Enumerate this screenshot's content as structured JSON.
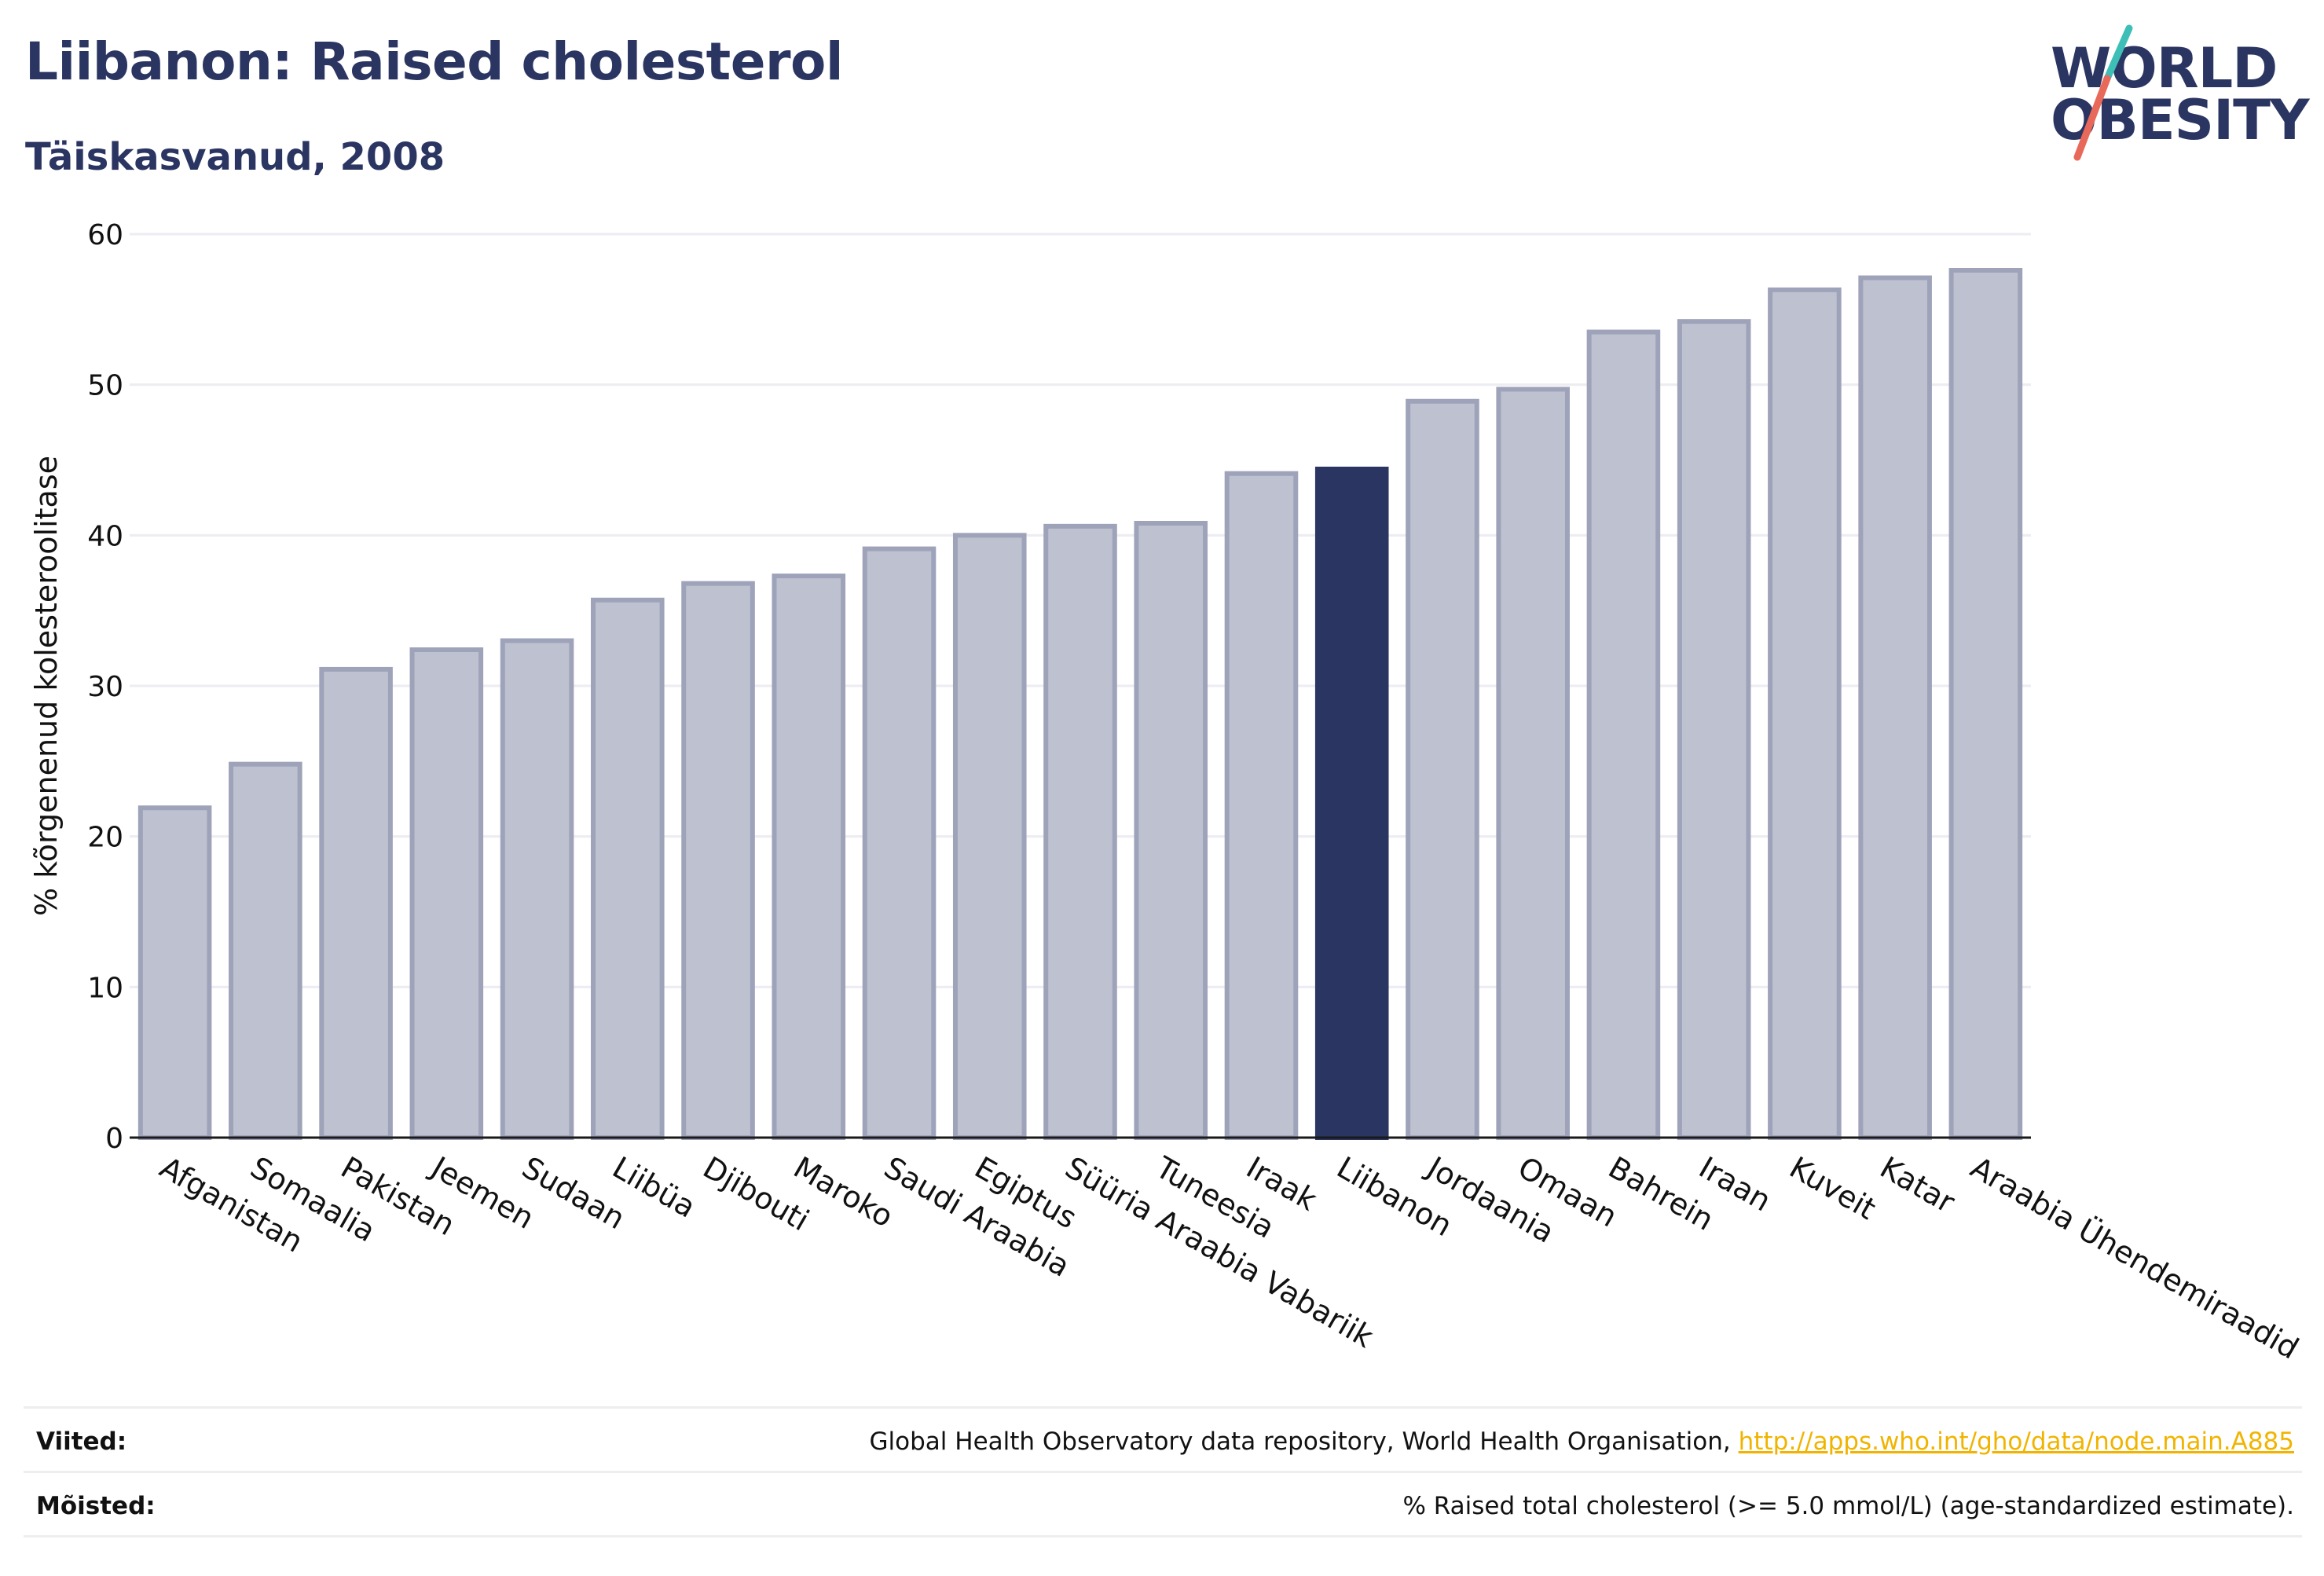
{
  "header": {
    "title": "Liibanon: Raised cholesterol",
    "subtitle": "Täiskasvanud, 2008"
  },
  "logo": {
    "line1": "WORLD",
    "line2": "OBESITY",
    "colors": {
      "text": "#2b3562",
      "slash_top": "#3dbfb8",
      "slash_bottom": "#e8685a"
    }
  },
  "colors": {
    "bar": "#bec1cf",
    "bar_stroke": "#9ea3ba",
    "highlight": "#2b3562",
    "grid": "#ececf2",
    "axis": "#1a1a1a"
  },
  "chart_data": {
    "type": "bar",
    "title": "Liibanon: Raised cholesterol",
    "subtitle": "Täiskasvanud, 2008",
    "xlabel": "",
    "ylabel": "% kõrgenenud kolesteroolitase",
    "ylim": [
      0,
      60
    ],
    "yticks": [
      0,
      10,
      20,
      30,
      40,
      50,
      60
    ],
    "grid": true,
    "highlight": "Liibanon",
    "categories": [
      "Afganistan",
      "Somaalia",
      "Pakistan",
      "Jeemen",
      "Sudaan",
      "Liibüa",
      "Djibouti",
      "Maroko",
      "Saudi Araabia",
      "Egiptus",
      "Süüria Araabia Vabariik",
      "Tuneesia",
      "Iraak",
      "Liibanon",
      "Jordaania",
      "Omaan",
      "Bahrein",
      "Iraan",
      "Kuveit",
      "Katar",
      "Araabia Ühendemiraadid"
    ],
    "values": [
      21.9,
      24.8,
      31.1,
      32.4,
      33.0,
      35.7,
      36.8,
      37.3,
      39.1,
      40.0,
      40.6,
      40.8,
      44.1,
      44.4,
      48.9,
      49.7,
      53.5,
      54.2,
      56.3,
      57.1,
      57.6
    ]
  },
  "footer": {
    "sources_label": "Viited:",
    "sources_text": "Global Health Observatory data repository, World Health Organisation, ",
    "sources_link": "http://apps.who.int/gho/data/node.main.A885",
    "definitions_label": "Mõisted:",
    "definitions_text": "% Raised total cholesterol (>= 5.0 mmol/L) (age-standardized estimate)."
  }
}
